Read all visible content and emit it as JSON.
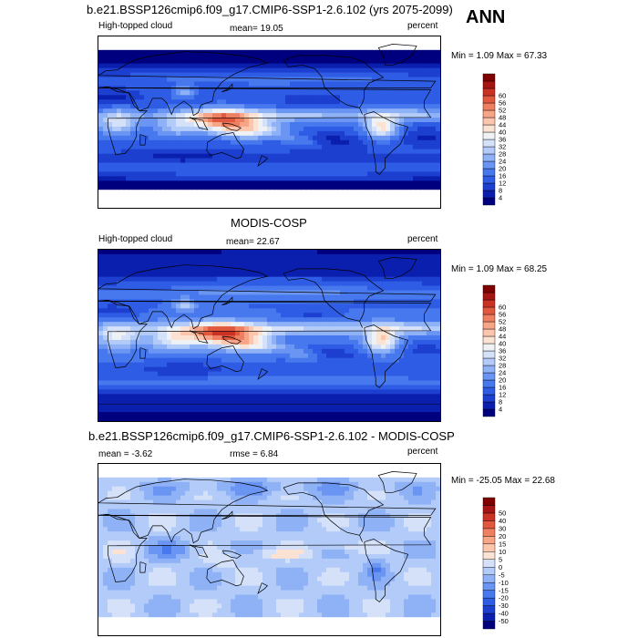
{
  "season": "ANN",
  "colors": {
    "seq": [
      "#00007f",
      "#0b1fae",
      "#1c3fd0",
      "#2f5ce4",
      "#4878ee",
      "#6a95f3",
      "#8fb1f6",
      "#b3cbf8",
      "#d4e1f8",
      "#eef2f5",
      "#fbe2d2",
      "#fcc6ad",
      "#f8a486",
      "#ef7f61",
      "#e1583f",
      "#c93225",
      "#a81413",
      "#7f0000"
    ],
    "diff": [
      "#00007f",
      "#0b1fae",
      "#1c3fd0",
      "#2f5ce4",
      "#4878ee",
      "#6a95f3",
      "#8fb1f6",
      "#b3cbf8",
      "#d4e1f8",
      "#fbe2d2",
      "#fcc6ad",
      "#f8a486",
      "#ef7f61",
      "#e1583f",
      "#c93225",
      "#a81413",
      "#7f0000"
    ],
    "land_outline": "#000000",
    "missing": "#ffffff"
  },
  "chart_data": [
    {
      "type": "heatmap",
      "title": "b.e21.BSSP126cmip6.f09_g17.CMIP6-SSP1-2.6.102 (yrs 2075-2099)",
      "left_label": "High-topped cloud",
      "center_label": "mean=  19.05",
      "right_label": "percent",
      "minmax": "Min =   1.09 Max =  67.33",
      "x_range": [
        0,
        360
      ],
      "y_range": [
        -90,
        90
      ],
      "levels": [
        4,
        8,
        12,
        16,
        20,
        24,
        28,
        32,
        36,
        40,
        44,
        48,
        52,
        56,
        60
      ],
      "colorbar": "seq",
      "field_mode": "model"
    },
    {
      "type": "heatmap",
      "title": "MODIS-COSP",
      "left_label": "High-topped cloud",
      "center_label": "mean=  22.67",
      "right_label": "percent",
      "minmax": "Min =   1.09 Max =  68.25",
      "x_range": [
        0,
        360
      ],
      "y_range": [
        -90,
        90
      ],
      "levels": [
        4,
        8,
        12,
        16,
        20,
        24,
        28,
        32,
        36,
        40,
        44,
        48,
        52,
        56,
        60
      ],
      "colorbar": "seq",
      "field_mode": "obs"
    },
    {
      "type": "heatmap",
      "title": "b.e21.BSSP126cmip6.f09_g17.CMIP6-SSP1-2.6.102 - MODIS-COSP",
      "left_label": "mean =  -3.62",
      "center_label": "rmse =   6.84",
      "right_label": "percent",
      "minmax": "Min = -25.05 Max =  22.68",
      "x_range": [
        0,
        360
      ],
      "y_range": [
        -90,
        90
      ],
      "levels": [
        -50,
        -40,
        -30,
        -20,
        -15,
        -10,
        -5,
        0,
        5,
        10,
        15,
        20,
        30,
        40,
        50
      ],
      "colorbar": "diff",
      "field_mode": "diff"
    }
  ]
}
